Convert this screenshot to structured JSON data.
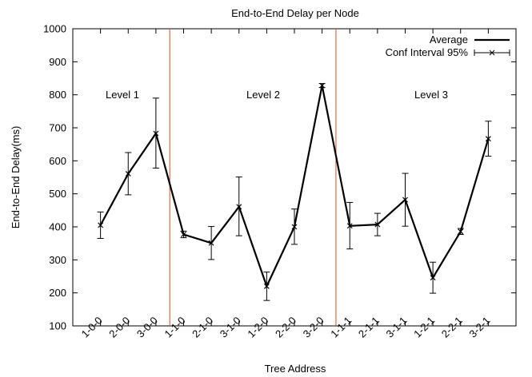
{
  "chart_data": {
    "type": "line",
    "title": "End-to-End Delay per Node",
    "xlabel": "Tree Address",
    "ylabel": "End-to-End Delay(ms)",
    "ylim": [
      100,
      1000
    ],
    "yticks": [
      100,
      200,
      300,
      400,
      500,
      600,
      700,
      800,
      900,
      1000
    ],
    "categories": [
      "1-0-0",
      "2-0-0",
      "3-0-0",
      "1-1-0",
      "2-1-0",
      "3-1-0",
      "1-2-0",
      "2-2-0",
      "3-2-0",
      "1-1-1",
      "2-1-1",
      "3-1-1",
      "1-2-1",
      "2-2-1",
      "3-2-1"
    ],
    "grid": false,
    "legend_position": "top-right",
    "legend": [
      "Average",
      "Conf Interval 95%"
    ],
    "series": [
      {
        "name": "Average",
        "color": "#000000",
        "values": [
          405,
          561,
          683,
          377,
          351,
          461,
          220,
          400,
          828,
          403,
          407,
          482,
          246,
          386,
          667
        ]
      }
    ],
    "error_bars": {
      "name": "Conf Interval 95%",
      "lower": [
        365,
        497,
        578,
        367,
        301,
        373,
        177,
        347,
        822,
        333,
        373,
        402,
        199,
        377,
        614
      ],
      "upper": [
        445,
        625,
        790,
        387,
        401,
        551,
        263,
        454,
        834,
        474,
        441,
        562,
        293,
        395,
        720
      ]
    },
    "level_separators": {
      "color": "#cc5522",
      "after_categories": [
        "3-0-0",
        "3-2-0"
      ]
    },
    "annotations": [
      "Level 1",
      "Level 2",
      "Level 3"
    ]
  }
}
